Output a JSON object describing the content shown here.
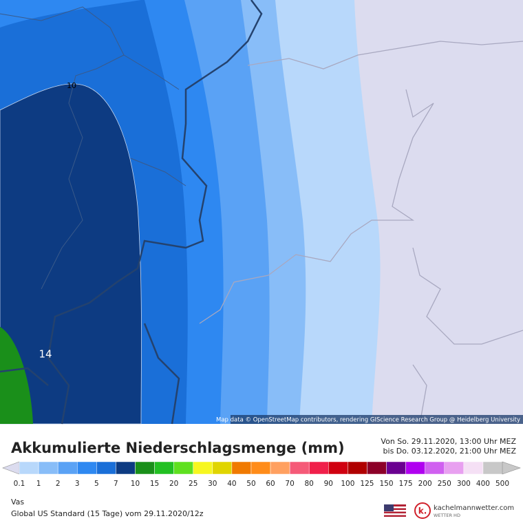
{
  "header": {
    "title": "Akkumulierte Niederschlagsmenge (mm)",
    "period_from": "Von So. 29.11.2020, 13:00 Uhr MEZ",
    "period_to": "bis Do. 03.12.2020, 21:00 Uhr MEZ"
  },
  "map": {
    "attribution": "Map data © OpenStreetMap contributors, rendering GIScience Research Group @ Heidelberg University",
    "contour_labels": [
      "10",
      "14"
    ]
  },
  "legend": {
    "thresholds": [
      0.1,
      1,
      2,
      3,
      5,
      7,
      10,
      15,
      20,
      25,
      30,
      40,
      50,
      60,
      70,
      80,
      90,
      100,
      125,
      150,
      175,
      200,
      250,
      300,
      400,
      500
    ],
    "colors": [
      "#dcdcef",
      "#b8d8fb",
      "#88bdf8",
      "#5aa2f5",
      "#2e88f1",
      "#1a6fd8",
      "#0d3b82",
      "#1a8f1a",
      "#22c022",
      "#5fe01f",
      "#f7f720",
      "#e0d500",
      "#f07a00",
      "#ff8c1a",
      "#ffa060",
      "#f55a78",
      "#f0204a",
      "#d00010",
      "#b00000",
      "#8c0028",
      "#6a0090",
      "#b000f0",
      "#d060f0",
      "#e8a0f0",
      "#f5e0f5",
      "#c8c8c8"
    ]
  },
  "footer": {
    "location": "Vas",
    "model": "Global US Standard (15 Tage) vom 29.11.2020/12z",
    "brand": "kachelmannwetter.com",
    "brand_sub": "WETTER HD"
  }
}
